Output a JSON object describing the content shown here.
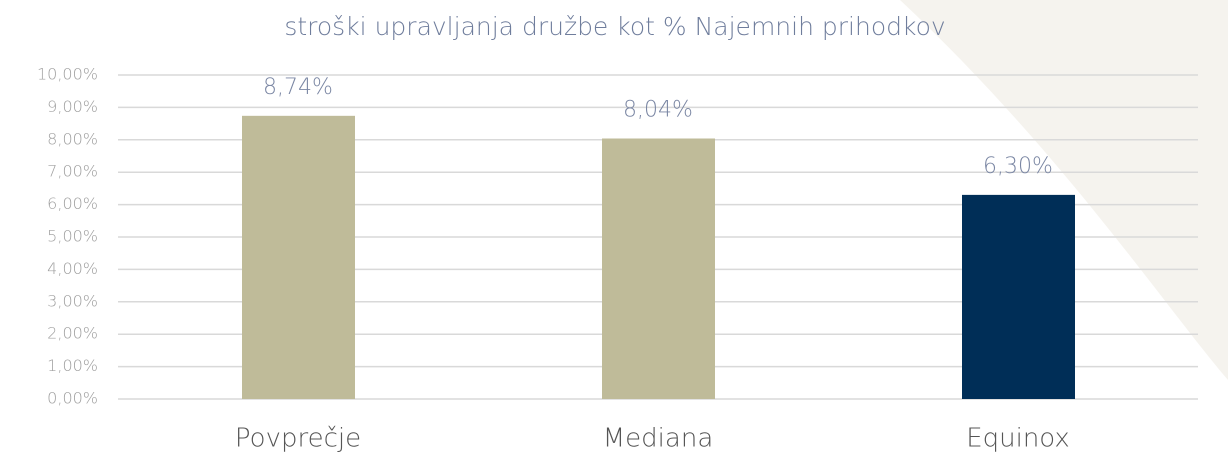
{
  "chart_data": {
    "type": "bar",
    "title": "stroški upravljanja družbe kot % Najemnih prihodkov",
    "categories": [
      "Povprečje",
      "Mediana",
      "Equinox"
    ],
    "values": [
      8.74,
      8.04,
      6.3
    ],
    "value_labels": [
      "8,74%",
      "8,04%",
      "6,30%"
    ],
    "colors": [
      "#bfbb99",
      "#bfbb99",
      "#002e57"
    ],
    "ylim": [
      0,
      10
    ],
    "yticks": [
      {
        "value": 0,
        "label": "0,00%"
      },
      {
        "value": 1,
        "label": "1,00%"
      },
      {
        "value": 2,
        "label": "2,00%"
      },
      {
        "value": 3,
        "label": "3,00%"
      },
      {
        "value": 4,
        "label": "4,00%"
      },
      {
        "value": 5,
        "label": "5,00%"
      },
      {
        "value": 6,
        "label": "6,00%"
      },
      {
        "value": 7,
        "label": "7,00%"
      },
      {
        "value": 8,
        "label": "8,00%"
      },
      {
        "value": 9,
        "label": "9,00%"
      },
      {
        "value": 10,
        "label": "10,00%"
      }
    ],
    "grid": true
  }
}
